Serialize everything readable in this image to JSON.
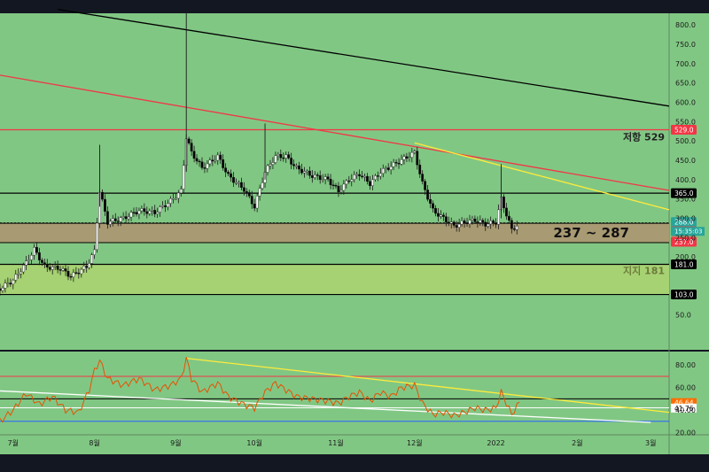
{
  "chart_data": [
    {
      "type": "candlestick",
      "y_axis": {
        "ticks": [
          "800.0",
          "750.0",
          "700.0",
          "650.0",
          "600.0",
          "550.0",
          "500.0",
          "450.0",
          "400.0",
          "350.0",
          "300.0",
          "250.0",
          "200.0",
          "50.0"
        ],
        "ylim": [
          -40,
          830
        ]
      },
      "x_axis": {
        "months": [
          {
            "label": "7월",
            "day": 0
          },
          {
            "label": "8월",
            "day": 31
          },
          {
            "label": "9월",
            "day": 62
          },
          {
            "label": "10월",
            "day": 92
          },
          {
            "label": "11월",
            "day": 123
          },
          {
            "label": "12월",
            "day": 153
          },
          {
            "label": "2022",
            "day": 184
          },
          {
            "label": "2월",
            "day": 215
          },
          {
            "label": "3월",
            "day": 243
          }
        ],
        "xlim": [
          -5,
          250
        ]
      },
      "series_close": [
        {
          "day": -5,
          "value": 118
        },
        {
          "day": 0,
          "value": 140
        },
        {
          "day": 5,
          "value": 185
        },
        {
          "day": 8,
          "value": 220
        },
        {
          "day": 12,
          "value": 175
        },
        {
          "day": 18,
          "value": 170
        },
        {
          "day": 22,
          "value": 150
        },
        {
          "day": 28,
          "value": 175
        },
        {
          "day": 31,
          "value": 215
        },
        {
          "day": 33,
          "value": 370
        },
        {
          "day": 36,
          "value": 290
        },
        {
          "day": 42,
          "value": 300
        },
        {
          "day": 48,
          "value": 320
        },
        {
          "day": 54,
          "value": 315
        },
        {
          "day": 60,
          "value": 345
        },
        {
          "day": 64,
          "value": 370
        },
        {
          "day": 66,
          "value": 510
        },
        {
          "day": 68,
          "value": 470
        },
        {
          "day": 72,
          "value": 430
        },
        {
          "day": 78,
          "value": 460
        },
        {
          "day": 82,
          "value": 410
        },
        {
          "day": 88,
          "value": 375
        },
        {
          "day": 92,
          "value": 330
        },
        {
          "day": 96,
          "value": 420
        },
        {
          "day": 100,
          "value": 460
        },
        {
          "day": 104,
          "value": 460
        },
        {
          "day": 108,
          "value": 430
        },
        {
          "day": 114,
          "value": 410
        },
        {
          "day": 120,
          "value": 400
        },
        {
          "day": 124,
          "value": 370
        },
        {
          "day": 128,
          "value": 400
        },
        {
          "day": 132,
          "value": 415
        },
        {
          "day": 136,
          "value": 390
        },
        {
          "day": 140,
          "value": 420
        },
        {
          "day": 144,
          "value": 435
        },
        {
          "day": 148,
          "value": 450
        },
        {
          "day": 153,
          "value": 470
        },
        {
          "day": 156,
          "value": 390
        },
        {
          "day": 160,
          "value": 320
        },
        {
          "day": 164,
          "value": 300
        },
        {
          "day": 168,
          "value": 280
        },
        {
          "day": 172,
          "value": 290
        },
        {
          "day": 176,
          "value": 295
        },
        {
          "day": 180,
          "value": 285
        },
        {
          "day": 184,
          "value": 290
        },
        {
          "day": 186,
          "value": 350
        },
        {
          "day": 188,
          "value": 310
        },
        {
          "day": 190,
          "value": 270
        },
        {
          "day": 193,
          "value": 288
        }
      ],
      "price_levels": [
        {
          "value": 529.0,
          "label": "529.0",
          "color": "#f23645",
          "text_color": "#ffffff"
        },
        {
          "value": 365.0,
          "label": "365.0",
          "color": "#000000",
          "text_color": "#ffffff"
        },
        {
          "value": 288.0,
          "label": "288.0",
          "color": "#26a69a",
          "text_color": "#ffffff"
        },
        {
          "value": 287.0,
          "label": "287.0",
          "color": "#f23645",
          "text_color": "#ffffff"
        },
        {
          "value": 237.0,
          "label": "237.0",
          "color": "#f23645",
          "text_color": "#ffffff"
        },
        {
          "value": 181.0,
          "label": "181.0",
          "color": "#000000",
          "text_color": "#ffffff"
        },
        {
          "value": 103.0,
          "label": "103.0",
          "color": "#000000",
          "text_color": "#ffffff"
        }
      ],
      "countdown": "15:35:03",
      "zones": [
        {
          "from": 237,
          "to": 287,
          "color": "#a89a72",
          "label": "237 ~ 287"
        },
        {
          "from": 181,
          "to": 103,
          "color": "#a6d273",
          "label": "지지 181"
        }
      ],
      "annotations": [
        {
          "text": "저항 529",
          "value": 529
        },
        {
          "text": "237 ~ 287",
          "value": 262
        },
        {
          "text": "지지 181",
          "value": 156
        }
      ],
      "trendlines": [
        {
          "color": "#000000",
          "points": [
            [
              17,
              840
            ],
            [
              250,
              590
            ]
          ]
        },
        {
          "color": "#f23645",
          "points": [
            [
              -5,
              670
            ],
            [
              250,
              372
            ]
          ]
        },
        {
          "color": "#ffeb3b",
          "points": [
            [
              153,
              495
            ],
            [
              250,
              322
            ]
          ]
        }
      ]
    },
    {
      "type": "line",
      "indicator": "RSI",
      "y_axis": {
        "ticks": [
          "80.00",
          "60.00",
          "40.00",
          "20.00"
        ],
        "ylim": [
          18,
          92
        ]
      },
      "current_values": [
        {
          "value": "46.64",
          "color": "#ff6d00",
          "text_color": "#ffffff"
        },
        {
          "value": "41.76",
          "color": "#ffffff",
          "text_color": "#000000"
        }
      ],
      "levels": [
        {
          "value": 70,
          "color": "#f23645"
        },
        {
          "value": 50,
          "color": "#000000"
        },
        {
          "value": 42,
          "color": "#ffffff"
        },
        {
          "value": 30,
          "color": "#2962ff"
        }
      ],
      "series": [
        {
          "day": -5,
          "value": 30
        },
        {
          "day": 0,
          "value": 40
        },
        {
          "day": 5,
          "value": 55
        },
        {
          "day": 10,
          "value": 45
        },
        {
          "day": 15,
          "value": 52
        },
        {
          "day": 20,
          "value": 40
        },
        {
          "day": 25,
          "value": 38
        },
        {
          "day": 29,
          "value": 58
        },
        {
          "day": 31,
          "value": 75
        },
        {
          "day": 33,
          "value": 84
        },
        {
          "day": 36,
          "value": 68
        },
        {
          "day": 42,
          "value": 62
        },
        {
          "day": 48,
          "value": 68
        },
        {
          "day": 54,
          "value": 58
        },
        {
          "day": 60,
          "value": 62
        },
        {
          "day": 64,
          "value": 68
        },
        {
          "day": 66,
          "value": 86
        },
        {
          "day": 68,
          "value": 68
        },
        {
          "day": 72,
          "value": 56
        },
        {
          "day": 78,
          "value": 64
        },
        {
          "day": 82,
          "value": 52
        },
        {
          "day": 88,
          "value": 45
        },
        {
          "day": 92,
          "value": 42
        },
        {
          "day": 96,
          "value": 56
        },
        {
          "day": 100,
          "value": 64
        },
        {
          "day": 104,
          "value": 58
        },
        {
          "day": 108,
          "value": 52
        },
        {
          "day": 114,
          "value": 50
        },
        {
          "day": 120,
          "value": 48
        },
        {
          "day": 124,
          "value": 46
        },
        {
          "day": 128,
          "value": 52
        },
        {
          "day": 132,
          "value": 56
        },
        {
          "day": 136,
          "value": 48
        },
        {
          "day": 140,
          "value": 56
        },
        {
          "day": 144,
          "value": 52
        },
        {
          "day": 148,
          "value": 60
        },
        {
          "day": 153,
          "value": 62
        },
        {
          "day": 156,
          "value": 46
        },
        {
          "day": 160,
          "value": 36
        },
        {
          "day": 164,
          "value": 38
        },
        {
          "day": 168,
          "value": 35
        },
        {
          "day": 172,
          "value": 38
        },
        {
          "day": 176,
          "value": 42
        },
        {
          "day": 180,
          "value": 40
        },
        {
          "day": 184,
          "value": 42
        },
        {
          "day": 186,
          "value": 56
        },
        {
          "day": 188,
          "value": 46
        },
        {
          "day": 190,
          "value": 36
        },
        {
          "day": 193,
          "value": 47
        }
      ],
      "trendlines": [
        {
          "color": "#ffffff",
          "points": [
            [
              -5,
              57
            ],
            [
              243,
              29
            ]
          ]
        },
        {
          "color": "#ffeb3b",
          "points": [
            [
              66,
              86
            ],
            [
              250,
              38
            ]
          ]
        }
      ]
    }
  ]
}
